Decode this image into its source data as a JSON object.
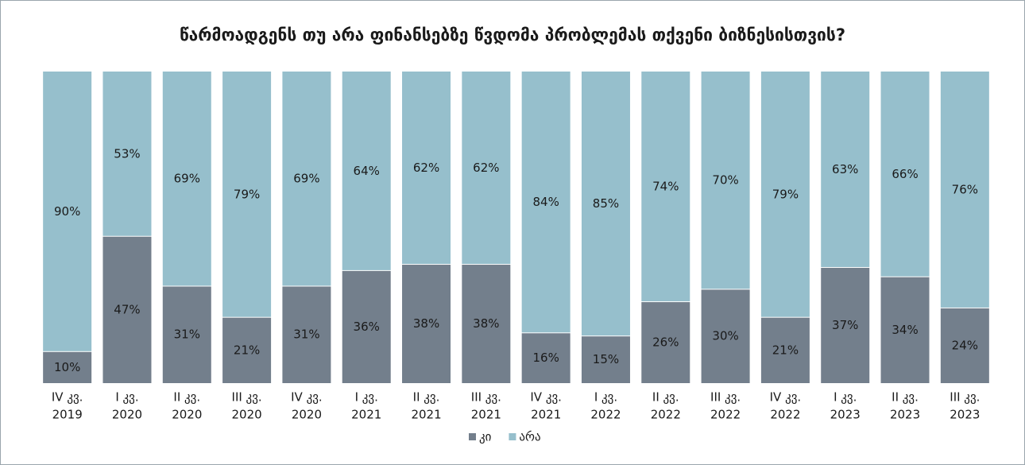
{
  "chart_data": {
    "type": "stacked_bar",
    "title": "წარმოადგენს თუ არა ფინანსებზე წვდომა პრობლემას თქვენი ბიზნესისთვის?",
    "categories": [
      [
        "IV კვ.",
        "2019"
      ],
      [
        "I კვ.",
        "2020"
      ],
      [
        "II კვ.",
        "2020"
      ],
      [
        "III კვ.",
        "2020"
      ],
      [
        "IV კვ.",
        "2020"
      ],
      [
        "I კვ.",
        "2021"
      ],
      [
        "II კვ.",
        "2021"
      ],
      [
        "III კვ.",
        "2021"
      ],
      [
        "IV კვ.",
        "2021"
      ],
      [
        "I კვ.",
        "2022"
      ],
      [
        "II კვ.",
        "2022"
      ],
      [
        "III კვ.",
        "2022"
      ],
      [
        "IV კვ.",
        "2022"
      ],
      [
        "I კვ.",
        "2023"
      ],
      [
        "II კვ.",
        "2023"
      ],
      [
        "III კვ.",
        "2023"
      ]
    ],
    "series": [
      {
        "name": "კი",
        "color": "#737f8c",
        "values": [
          10,
          47,
          31,
          21,
          31,
          36,
          38,
          38,
          16,
          15,
          26,
          30,
          21,
          37,
          34,
          24
        ],
        "value_labels": [
          "10%",
          "47%",
          "31%",
          "21%",
          "31%",
          "36%",
          "38%",
          "38%",
          "16%",
          "15%",
          "26%",
          "30%",
          "21%",
          "37%",
          "34%",
          "24%"
        ]
      },
      {
        "name": "არა",
        "color": "#96bfcc",
        "values": [
          90,
          53,
          69,
          79,
          69,
          64,
          62,
          62,
          84,
          85,
          74,
          70,
          79,
          63,
          66,
          76
        ],
        "value_labels": [
          "90%",
          "53%",
          "69%",
          "79%",
          "69%",
          "64%",
          "62%",
          "62%",
          "84%",
          "85%",
          "74%",
          "70%",
          "79%",
          "63%",
          "66%",
          "76%"
        ]
      }
    ],
    "ylim": [
      0,
      100
    ]
  }
}
